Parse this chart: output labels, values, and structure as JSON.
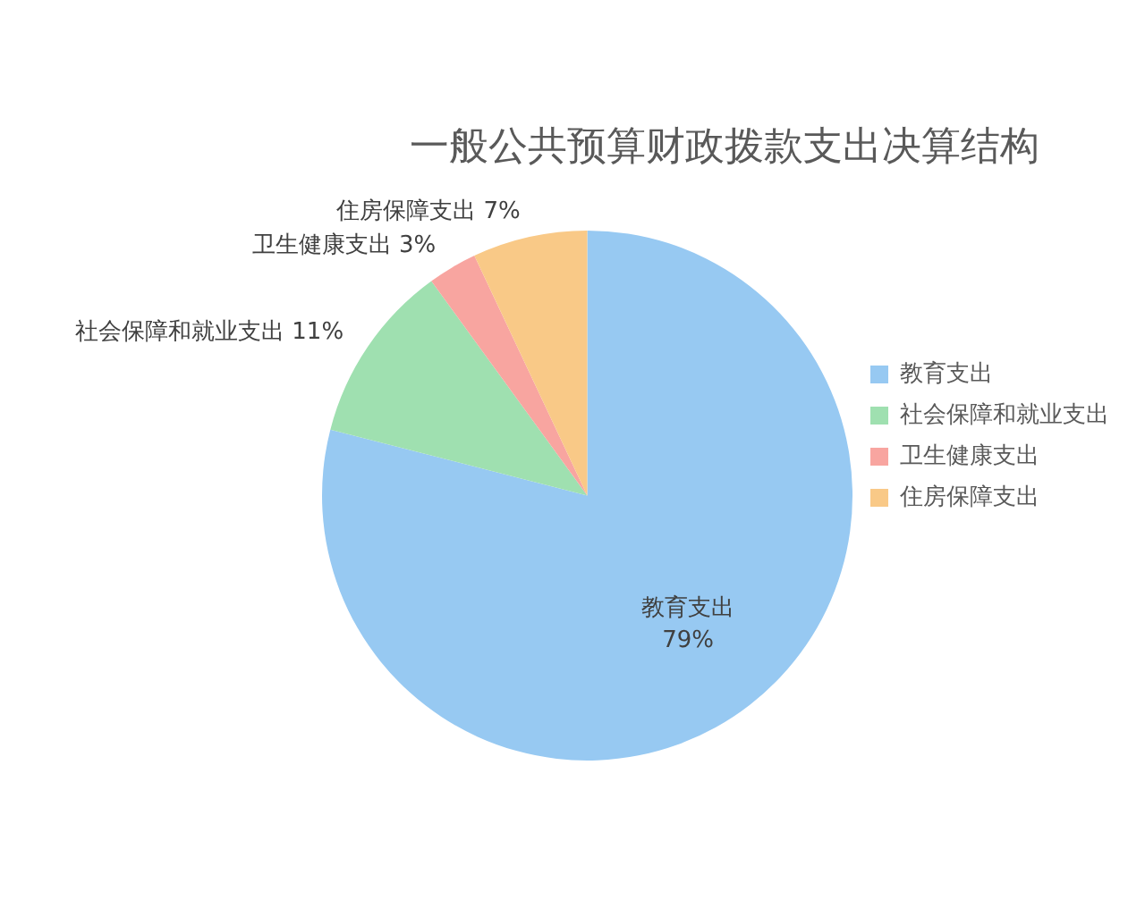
{
  "chart_data": {
    "type": "pie",
    "title": "一般公共预算财政拨款支出决算结构",
    "categories": [
      "教育支出",
      "社会保障和就业支出",
      "卫生健康支出",
      "住房保障支出"
    ],
    "values": [
      79,
      11,
      3,
      7
    ],
    "colors": [
      "#97c9f2",
      "#9fe0b0",
      "#f8a5a0",
      "#f9c987"
    ],
    "value_labels": [
      "79%",
      "11%",
      "3%",
      "7%"
    ],
    "legend": "right"
  }
}
